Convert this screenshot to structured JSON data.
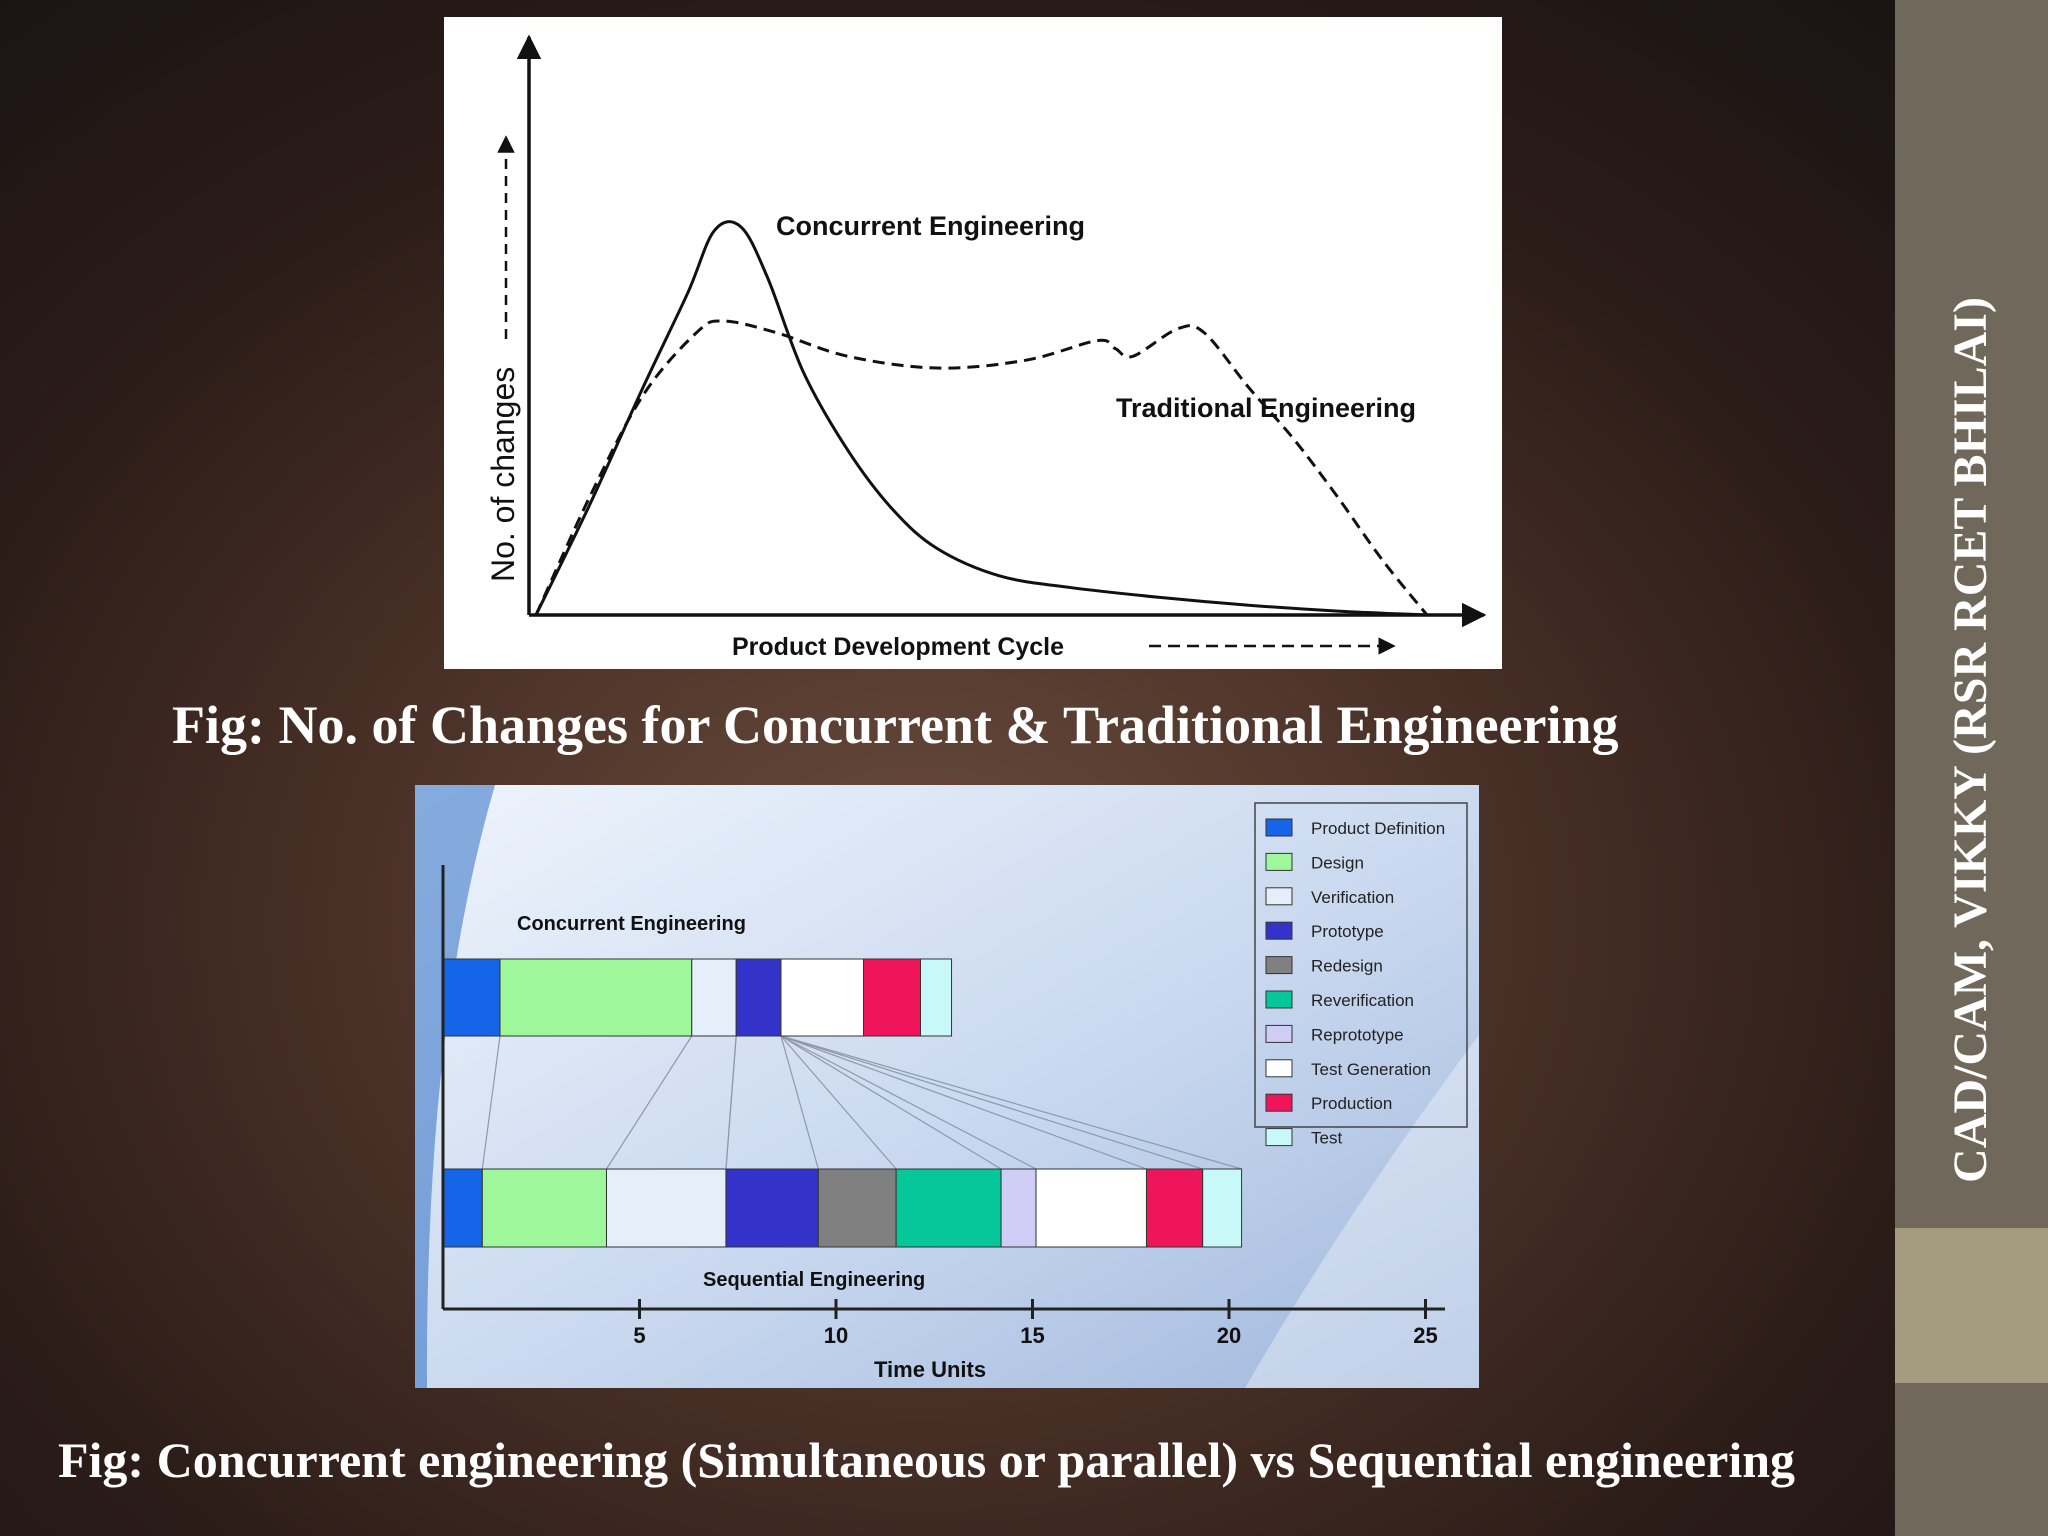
{
  "slide": {
    "side_title": "CAD/CAM, VIKKY (RSR RCET BHILAI)",
    "colors": {
      "sidebar": "#70685a",
      "sidebar_accent": "#a59c80",
      "caption": "#ffffff"
    }
  },
  "captions": {
    "fig1": "Fig: No. of  Changes for Concurrent & Traditional Engineering",
    "fig2": "Fig: Concurrent engineering (Simultaneous or parallel) vs Sequential engineering"
  },
  "chart_data": [
    {
      "type": "line",
      "title": "",
      "xlabel": "Product Development Cycle",
      "ylabel": "No. of changes",
      "xlim": [
        0,
        100
      ],
      "ylim": [
        0,
        100
      ],
      "grid": false,
      "series": [
        {
          "name": "Concurrent Engineering",
          "style": "solid",
          "x": [
            0,
            6,
            12,
            17,
            20,
            23,
            26,
            30,
            35,
            40,
            45,
            52,
            60,
            70,
            80,
            90,
            100
          ],
          "y": [
            0,
            28,
            58,
            82,
            98,
            99,
            86,
            62,
            42,
            27,
            17,
            10,
            7,
            4.5,
            2.5,
            1,
            0
          ]
        },
        {
          "name": "Traditional Engineering",
          "style": "dashed",
          "x": [
            0,
            6,
            12,
            18,
            21,
            27,
            35,
            45,
            55,
            63,
            65,
            67,
            72,
            75,
            80,
            85,
            90,
            95,
            100
          ],
          "y": [
            0,
            30,
            56,
            72,
            75,
            72,
            66,
            63,
            65,
            70,
            68,
            66,
            73,
            72,
            58,
            45,
            30,
            14,
            0
          ]
        }
      ]
    },
    {
      "type": "bar",
      "orientation": "horizontal-stacked",
      "xlabel": "Time Units",
      "xticks": [
        5,
        10,
        15,
        20,
        25
      ],
      "xlim": [
        0,
        25
      ],
      "legend": "top-right",
      "phases": [
        {
          "name": "Product Definition",
          "color": "#1565e8"
        },
        {
          "name": "Design",
          "color": "#9ef79a"
        },
        {
          "name": "Verification",
          "color": "#e6eefa"
        },
        {
          "name": "Prototype",
          "color": "#3333c9"
        },
        {
          "name": "Redesign",
          "color": "#808080"
        },
        {
          "name": "Reverification",
          "color": "#05c79a"
        },
        {
          "name": "Reprototype",
          "color": "#cfcdf5"
        },
        {
          "name": "Test Generation",
          "color": "#ffffff"
        },
        {
          "name": "Production",
          "color": "#f0145a"
        },
        {
          "name": "Test",
          "color": "#c8f8f8"
        }
      ],
      "rows": [
        {
          "name": "Concurrent Engineering",
          "segments": [
            {
              "phase": "Product Definition",
              "start": 0,
              "end": 1.45
            },
            {
              "phase": "Design",
              "start": 1.45,
              "end": 6.33
            },
            {
              "phase": "Verification",
              "start": 6.33,
              "end": 7.46
            },
            {
              "phase": "Prototype",
              "start": 7.46,
              "end": 8.6
            },
            {
              "phase": "Test Generation",
              "start": 8.6,
              "end": 10.7
            },
            {
              "phase": "Production",
              "start": 10.7,
              "end": 12.15
            },
            {
              "phase": "Test",
              "start": 12.15,
              "end": 12.94
            }
          ]
        },
        {
          "name": "Sequential Engineering",
          "segments": [
            {
              "phase": "Product Definition",
              "start": 0,
              "end": 1.0
            },
            {
              "phase": "Design",
              "start": 1.0,
              "end": 4.16
            },
            {
              "phase": "Verification",
              "start": 4.16,
              "end": 7.2
            },
            {
              "phase": "Prototype",
              "start": 7.2,
              "end": 9.55
            },
            {
              "phase": "Redesign",
              "start": 9.55,
              "end": 11.53
            },
            {
              "phase": "Reverification",
              "start": 11.53,
              "end": 14.2
            },
            {
              "phase": "Reprototype",
              "start": 14.2,
              "end": 15.09
            },
            {
              "phase": "Test Generation",
              "start": 15.09,
              "end": 17.9
            },
            {
              "phase": "Production",
              "start": 17.9,
              "end": 19.33
            },
            {
              "phase": "Test",
              "start": 19.33,
              "end": 20.32
            }
          ]
        }
      ]
    }
  ]
}
